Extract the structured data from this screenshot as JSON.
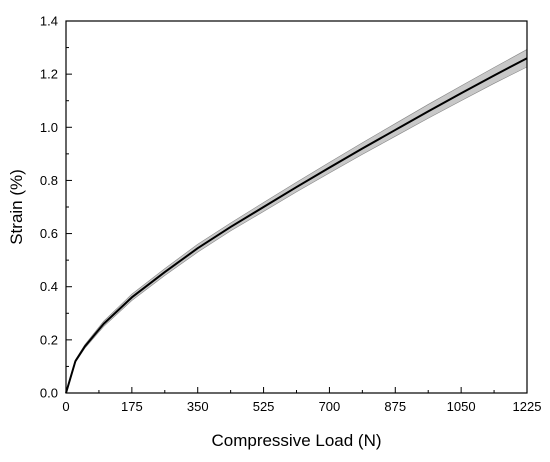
{
  "chart_data": {
    "type": "line",
    "xlabel": "Compressive Load (N)",
    "ylabel": "Strain (%)",
    "xlim": [
      0,
      1225
    ],
    "ylim": [
      0,
      1.4
    ],
    "x_ticks": [
      0,
      175,
      350,
      525,
      700,
      875,
      1050,
      1225
    ],
    "y_ticks": [
      0.0,
      0.2,
      0.4,
      0.6,
      0.8,
      1.0,
      1.2,
      1.4
    ],
    "x_tick_labels": [
      "0",
      "175",
      "350",
      "525",
      "700",
      "875",
      "1050",
      "1225"
    ],
    "y_tick_labels": [
      "0.0",
      "0.2",
      "0.4",
      "0.6",
      "0.8",
      "1.0",
      "1.2",
      "1.4"
    ],
    "grid": false,
    "series": [
      {
        "line_color": "#000000",
        "band_color": "#c8c8c8",
        "points": [
          {
            "x": 0,
            "y": 0.0,
            "lower": 0.0,
            "upper": 0.0
          },
          {
            "x": 25,
            "y": 0.12,
            "lower": 0.115,
            "upper": 0.125
          },
          {
            "x": 50,
            "y": 0.175,
            "lower": 0.168,
            "upper": 0.182
          },
          {
            "x": 100,
            "y": 0.26,
            "lower": 0.25,
            "upper": 0.27
          },
          {
            "x": 175,
            "y": 0.36,
            "lower": 0.348,
            "upper": 0.372
          },
          {
            "x": 262.5,
            "y": 0.455,
            "lower": 0.442,
            "upper": 0.468
          },
          {
            "x": 350,
            "y": 0.545,
            "lower": 0.53,
            "upper": 0.56
          },
          {
            "x": 437.5,
            "y": 0.625,
            "lower": 0.61,
            "upper": 0.64
          },
          {
            "x": 525,
            "y": 0.7,
            "lower": 0.683,
            "upper": 0.717
          },
          {
            "x": 612.5,
            "y": 0.775,
            "lower": 0.757,
            "upper": 0.793
          },
          {
            "x": 700,
            "y": 0.848,
            "lower": 0.828,
            "upper": 0.868
          },
          {
            "x": 787.5,
            "y": 0.92,
            "lower": 0.898,
            "upper": 0.942
          },
          {
            "x": 875,
            "y": 0.99,
            "lower": 0.966,
            "upper": 1.014
          },
          {
            "x": 962.5,
            "y": 1.06,
            "lower": 1.034,
            "upper": 1.086
          },
          {
            "x": 1050,
            "y": 1.128,
            "lower": 1.1,
            "upper": 1.156
          },
          {
            "x": 1137.5,
            "y": 1.195,
            "lower": 1.165,
            "upper": 1.225
          },
          {
            "x": 1225,
            "y": 1.26,
            "lower": 1.227,
            "upper": 1.293
          }
        ]
      }
    ]
  }
}
